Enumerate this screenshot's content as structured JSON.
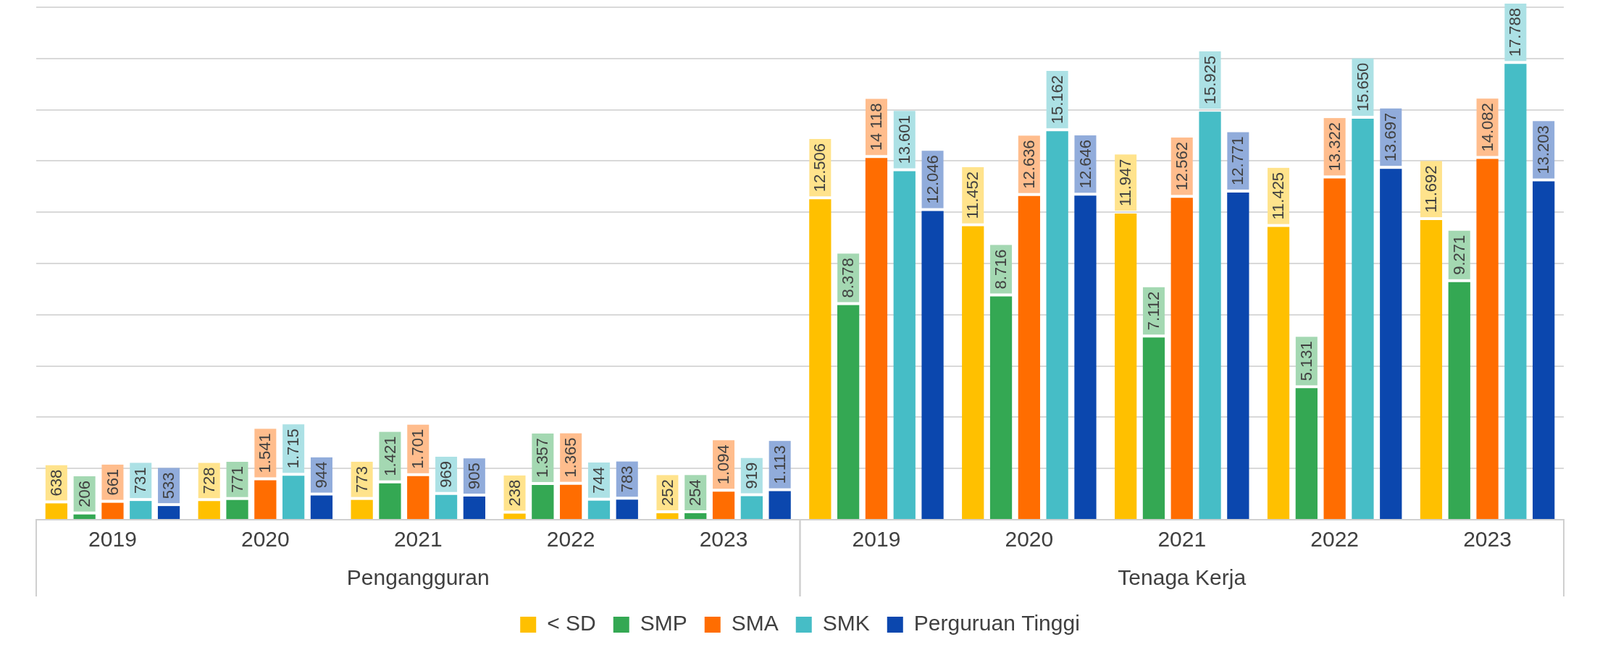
{
  "chart_data": {
    "type": "bar",
    "categories": [
      "2019",
      "2020",
      "2021",
      "2022",
      "2023",
      "2019",
      "2020",
      "2021",
      "2022",
      "2023"
    ],
    "category_groups": [
      "Pengangguran",
      "Pengangguran",
      "Pengangguran",
      "Pengangguran",
      "Pengangguran",
      "Tenaga Kerja",
      "Tenaga Kerja",
      "Tenaga Kerja",
      "Tenaga Kerja",
      "Tenaga Kerja"
    ],
    "series": [
      {
        "name": "< SD",
        "color": "#FFC000",
        "values": [
          638,
          728,
          773,
          238,
          252,
          12506,
          11452,
          11947,
          11425,
          11692
        ],
        "value_labels": [
          "638",
          "728",
          "773",
          "238",
          "252",
          "12.506",
          "11.452",
          "11.947",
          "11.425",
          "11.692"
        ]
      },
      {
        "name": "SMP",
        "color": "#34A853",
        "values": [
          206,
          771,
          1421,
          1357,
          254,
          8378,
          8716,
          7112,
          5131,
          9271
        ],
        "value_labels": [
          "206",
          "771",
          "1.421",
          "1.357",
          "254",
          "8.378",
          "8.716",
          "7.112",
          "5.131",
          "9.271"
        ]
      },
      {
        "name": "SMA",
        "color": "#FF6D01",
        "values": [
          661,
          1541,
          1701,
          1365,
          1094,
          14118,
          12636,
          12562,
          13322,
          14082
        ],
        "value_labels": [
          "661",
          "1.541",
          "1.701",
          "1.365",
          "1.094",
          "14 118",
          "12.636",
          "12.562",
          "13.322",
          "14.082"
        ]
      },
      {
        "name": "SMK",
        "color": "#46BDC6",
        "values": [
          731,
          1715,
          969,
          744,
          919,
          13601,
          15162,
          15925,
          15650,
          17788
        ],
        "value_labels": [
          "731",
          "1.715",
          "969",
          "744",
          "919",
          "13.601",
          "15.162",
          "15.925",
          "15.650",
          "17.788"
        ]
      },
      {
        "name": "Perguruan Tinggi",
        "color": "#0B47AE",
        "values": [
          533,
          944,
          905,
          783,
          1113,
          12046,
          12646,
          12771,
          13697,
          13203
        ],
        "value_labels": [
          "533",
          "944",
          "905",
          "783",
          "1.113",
          "12.046",
          "12.646",
          "12.771",
          "13.697",
          "13.203"
        ]
      }
    ],
    "ylim": [
      0,
      20000
    ],
    "yticks": [
      0,
      2000,
      4000,
      6000,
      8000,
      10000,
      12000,
      14000,
      16000,
      18000,
      20000
    ],
    "grid": true,
    "legend": "bottom",
    "data_labels": true,
    "tick_labels": "x"
  }
}
